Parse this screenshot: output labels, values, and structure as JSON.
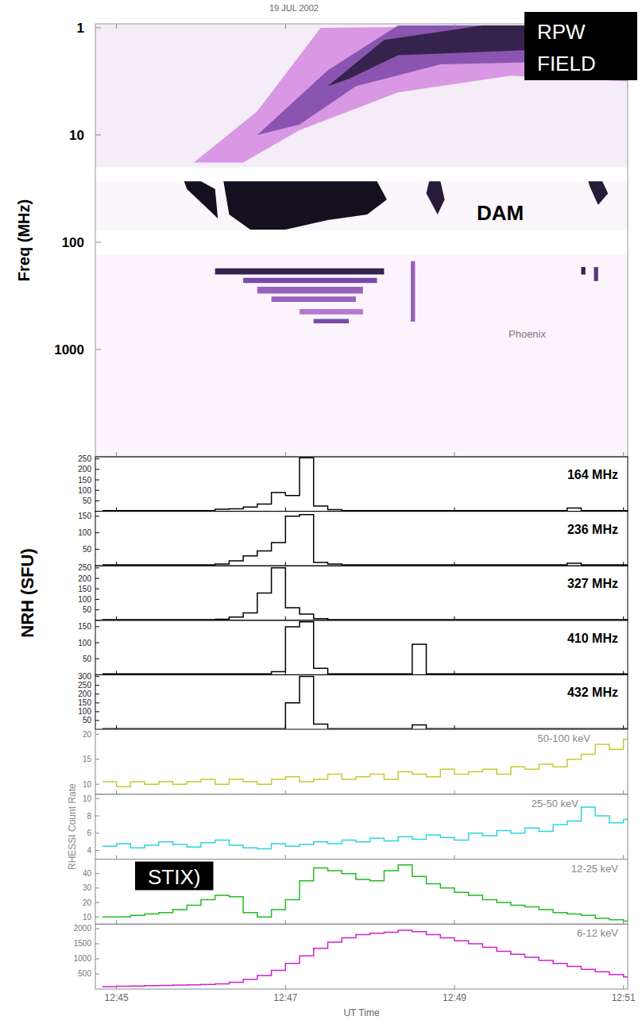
{
  "chart_data": [
    {
      "type": "spectrogram",
      "title": "19 JUL 2002",
      "ylabel": "Freq (MHz)",
      "log": "y",
      "ylim": [
        0.92,
        10000
      ],
      "yticks": [
        1,
        10,
        100,
        1000
      ],
      "xlim": [
        -15,
        363
      ],
      "xticks": [
        0,
        120,
        240,
        360
      ],
      "tick_labels": "y",
      "bands": [
        [
          0.92,
          20
        ],
        [
          27,
          78
        ],
        [
          130,
          10000
        ]
      ],
      "features": [
        {
          "t": [
            55,
            100,
            145,
            370,
            370,
            280,
            200,
            130,
            90
          ],
          "f": [
            18,
            6,
            1,
            0.95,
            3.2,
            2.8,
            4,
            9,
            18
          ],
          "intensity": 0.35
        },
        {
          "t": [
            100,
            150,
            200,
            370,
            370,
            230,
            170,
            130
          ],
          "f": [
            10,
            2.5,
            0.95,
            0.95,
            2,
            2.2,
            3.5,
            8
          ],
          "intensity": 0.65
        },
        {
          "t": [
            150,
            190,
            260,
            300,
            300,
            200,
            165
          ],
          "f": [
            3.5,
            1.3,
            0.95,
            0.95,
            1.6,
            1.8,
            3
          ],
          "intensity": 0.9
        },
        {
          "t": [
            48,
            60,
            70,
            72,
            62,
            50
          ],
          "f": [
            27,
            27,
            32,
            60,
            45,
            32
          ],
          "intensity": 1
        },
        {
          "t": [
            76,
            150,
            185,
            192,
            178,
            150,
            120,
            95,
            80
          ],
          "f": [
            27,
            27,
            27,
            40,
            55,
            62,
            76,
            76,
            55
          ],
          "intensity": 1
        },
        {
          "t": [
            222,
            230,
            233,
            228,
            220
          ],
          "f": [
            27,
            27,
            40,
            55,
            35
          ],
          "intensity": 0.95
        },
        {
          "t": [
            335,
            345,
            349,
            342,
            336
          ],
          "f": [
            27,
            27,
            35,
            45,
            30
          ],
          "intensity": 0.95
        },
        {
          "t": [
            70,
            190,
            190,
            70
          ],
          "f": [
            175,
            175,
            200,
            200
          ],
          "intensity": 0.9
        },
        {
          "t": [
            90,
            185,
            185,
            90
          ],
          "f": [
            215,
            215,
            240,
            240
          ],
          "intensity": 0.7
        },
        {
          "t": [
            100,
            175,
            175,
            100
          ],
          "f": [
            260,
            260,
            300,
            300
          ],
          "intensity": 0.6
        },
        {
          "t": [
            110,
            170,
            170,
            110
          ],
          "f": [
            320,
            320,
            360,
            360
          ],
          "intensity": 0.6
        },
        {
          "t": [
            130,
            175,
            175,
            130
          ],
          "f": [
            420,
            420,
            470,
            470
          ],
          "intensity": 0.5
        },
        {
          "t": [
            140,
            165,
            165,
            140
          ],
          "f": [
            520,
            520,
            570,
            570
          ],
          "intensity": 0.7
        },
        {
          "t": [
            209,
            212,
            212,
            209
          ],
          "f": [
            150,
            150,
            550,
            550
          ],
          "intensity": 0.6
        },
        {
          "t": [
            330,
            333,
            333,
            330
          ],
          "f": [
            170,
            170,
            200,
            200
          ],
          "intensity": 0.9
        },
        {
          "t": [
            339,
            342,
            342,
            339
          ],
          "f": [
            170,
            170,
            230,
            230
          ],
          "intensity": 0.8
        }
      ],
      "annotations": [
        "RPW",
        "FIELD",
        "DAM",
        "Phoenix"
      ]
    },
    {
      "type": "line",
      "ylabel": "NRH (SFU)",
      "tick_labels": "y",
      "x": [
        -10,
        0,
        10,
        20,
        30,
        40,
        50,
        60,
        70,
        80,
        90,
        100,
        110,
        120,
        130,
        140,
        150,
        160,
        170,
        180,
        190,
        200,
        210,
        220,
        230,
        240,
        250,
        260,
        270,
        280,
        290,
        300,
        310,
        320,
        330,
        340,
        350,
        360
      ],
      "xlim": [
        -15,
        363
      ],
      "xticks": [
        0,
        120,
        240,
        360
      ],
      "panels": [
        {
          "label": "164 MHz",
          "ylim": [
            0,
            260
          ],
          "yticks": [
            50,
            100,
            150,
            200,
            250
          ],
          "color": "#000000",
          "values": [
            3,
            3,
            3,
            3,
            3,
            3,
            3,
            3,
            10,
            12,
            20,
            35,
            90,
            75,
            255,
            25,
            8,
            3,
            3,
            3,
            3,
            3,
            3,
            3,
            3,
            3,
            3,
            3,
            3,
            3,
            3,
            3,
            3,
            15,
            3,
            3,
            3,
            3
          ]
        },
        {
          "label": "236 MHz",
          "ylim": [
            0,
            165
          ],
          "yticks": [
            50,
            100,
            150
          ],
          "color": "#000000",
          "values": [
            3,
            3,
            3,
            3,
            3,
            3,
            3,
            3,
            5,
            15,
            30,
            45,
            70,
            150,
            155,
            10,
            5,
            3,
            3,
            3,
            3,
            3,
            3,
            3,
            3,
            3,
            3,
            3,
            3,
            3,
            3,
            3,
            3,
            8,
            3,
            3,
            3,
            3
          ]
        },
        {
          "label": "327 MHz",
          "ylim": [
            0,
            260
          ],
          "yticks": [
            50,
            100,
            150,
            200,
            250
          ],
          "color": "#000000",
          "values": [
            3,
            3,
            3,
            3,
            3,
            3,
            3,
            3,
            5,
            15,
            35,
            130,
            250,
            60,
            30,
            8,
            3,
            3,
            3,
            3,
            3,
            3,
            3,
            3,
            3,
            3,
            3,
            3,
            3,
            3,
            3,
            3,
            3,
            3,
            3,
            3,
            3,
            3
          ]
        },
        {
          "label": "410 MHz",
          "ylim": [
            0,
            170
          ],
          "yticks": [
            50,
            100,
            150
          ],
          "color": "#000000",
          "values": [
            3,
            3,
            3,
            3,
            3,
            3,
            3,
            3,
            3,
            3,
            3,
            3,
            10,
            150,
            165,
            20,
            3,
            3,
            3,
            3,
            3,
            3,
            95,
            3,
            3,
            3,
            3,
            3,
            3,
            3,
            3,
            3,
            3,
            3,
            3,
            3,
            3,
            3
          ]
        },
        {
          "label": "432 MHz",
          "ylim": [
            0,
            310
          ],
          "yticks": [
            50,
            100,
            150,
            200,
            250,
            300
          ],
          "color": "#000000",
          "values": [
            3,
            3,
            3,
            3,
            3,
            3,
            3,
            3,
            3,
            3,
            3,
            3,
            3,
            150,
            300,
            30,
            3,
            3,
            3,
            3,
            3,
            3,
            25,
            3,
            3,
            3,
            3,
            3,
            3,
            3,
            3,
            3,
            3,
            3,
            3,
            3,
            3,
            3
          ]
        }
      ]
    },
    {
      "type": "line",
      "ylabel": "RHESSI Count Rate",
      "xlabel": "UT Time",
      "x": [
        -10,
        0,
        10,
        20,
        30,
        40,
        50,
        60,
        70,
        80,
        90,
        100,
        110,
        120,
        130,
        140,
        150,
        160,
        170,
        180,
        190,
        200,
        210,
        220,
        230,
        240,
        250,
        260,
        270,
        280,
        290,
        300,
        310,
        320,
        330,
        340,
        350,
        360
      ],
      "xlim": [
        -15,
        363
      ],
      "xticks": [
        {
          "value": 0,
          "label": "12:45"
        },
        {
          "value": 120,
          "label": "12:47"
        },
        {
          "value": 240,
          "label": "12:49"
        },
        {
          "value": 360,
          "label": "12:51"
        }
      ],
      "annotations": [
        "STIX)"
      ],
      "panels": [
        {
          "label": "50-100 keV",
          "ylim": [
            8,
            21
          ],
          "yticks": [
            10,
            15,
            20
          ],
          "color": "#c8c832",
          "values": [
            10.5,
            9.5,
            10.5,
            10,
            10.5,
            10,
            10.5,
            11,
            10,
            11,
            10.5,
            10,
            11,
            11.5,
            10.5,
            11,
            12,
            11,
            11.5,
            12,
            11,
            12.5,
            12,
            11.5,
            13,
            12,
            12.5,
            13,
            12,
            13.5,
            13,
            14,
            13.5,
            15,
            16,
            18,
            17,
            19
          ]
        },
        {
          "label": "25-50 keV",
          "ylim": [
            3,
            10.5
          ],
          "yticks": [
            4,
            6,
            8,
            10
          ],
          "color": "#2ed3e0",
          "values": [
            4.5,
            4.8,
            4.3,
            4.6,
            5,
            4.7,
            4.4,
            4.9,
            5.2,
            4.6,
            4.3,
            4.2,
            4.8,
            4.5,
            4.7,
            5,
            4.8,
            5.2,
            5,
            5.4,
            5.1,
            5.6,
            5.3,
            5.8,
            5.5,
            5.2,
            6,
            5.7,
            6.3,
            6,
            6.6,
            6.2,
            7,
            7.4,
            9,
            8,
            7.2,
            7.6
          ]
        },
        {
          "label": "12-25 keV",
          "ylim": [
            5,
            50
          ],
          "yticks": [
            10,
            20,
            30,
            40
          ],
          "color": "#22bb22",
          "values": [
            10,
            10,
            11,
            12,
            13,
            15,
            18,
            22,
            25,
            24,
            13,
            10,
            15,
            22,
            35,
            44,
            42,
            40,
            36,
            35,
            42,
            46,
            38,
            33,
            30,
            27,
            25,
            22,
            20,
            18,
            17,
            15,
            13,
            12,
            11,
            9,
            8,
            7
          ]
        },
        {
          "label": "6-12 keV",
          "ylim": [
            0,
            2150
          ],
          "yticks": [
            500,
            1000,
            1500,
            2000
          ],
          "color": "#d020d0",
          "values": [
            80,
            90,
            100,
            110,
            120,
            130,
            140,
            150,
            170,
            220,
            320,
            450,
            620,
            850,
            1100,
            1350,
            1550,
            1700,
            1800,
            1850,
            1880,
            1950,
            1900,
            1800,
            1700,
            1600,
            1500,
            1380,
            1250,
            1150,
            1050,
            950,
            850,
            750,
            650,
            570,
            480,
            400
          ]
        }
      ]
    }
  ]
}
